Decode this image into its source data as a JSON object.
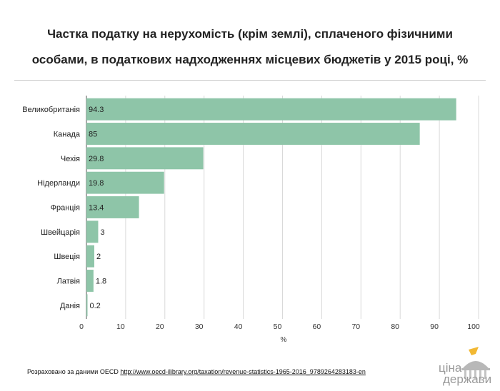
{
  "header": {
    "title_line1": "Частка податку на нерухомість (крім землі), сплаченого фізичними",
    "title_line2": "особами, в податкових надходженнях місцевих бюджетів у 2015 році, %"
  },
  "chart_data": {
    "type": "bar",
    "orientation": "horizontal",
    "categories": [
      "Великобританія",
      "Канада",
      "Чехія",
      "Нідерланди",
      "Франція",
      "Швейцарія",
      "Швеція",
      "Латвія",
      "Данія"
    ],
    "values": [
      94.3,
      85,
      29.8,
      19.8,
      13.4,
      3,
      2,
      1.8,
      0.2
    ],
    "value_labels": [
      "94.3",
      "85",
      "29.8",
      "19.8",
      "13.4",
      "3",
      "2",
      "1.8",
      "0.2"
    ],
    "xlabel": "%",
    "xlim": [
      0,
      100
    ],
    "xticks": [
      0,
      10,
      20,
      30,
      40,
      50,
      60,
      70,
      80,
      90,
      100
    ],
    "grid": "vertical",
    "bar_color": "#8ec5a8",
    "grid_color": "#d9d9d9"
  },
  "footer": {
    "source_prefix": "Розраховано за даними OECD",
    "source_url": "http://www.oecd-ilibrary.org/taxation/revenue-statistics-1965-2016_9789264283183-en"
  },
  "logo": {
    "line1": "ціна",
    "line2": "держави",
    "icon": "building-icon",
    "accent_color": "#f2b833"
  }
}
